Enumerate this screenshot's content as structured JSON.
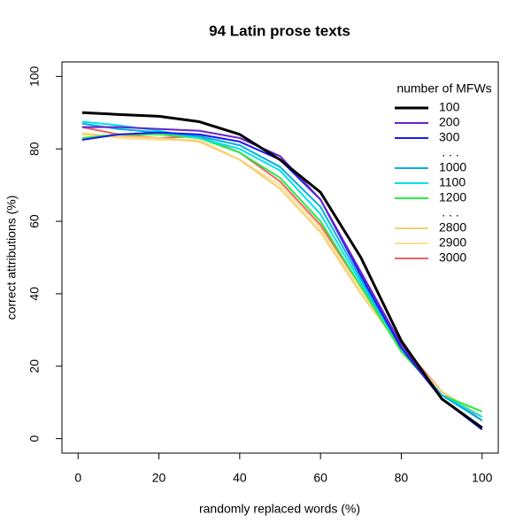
{
  "chart_data": {
    "type": "line",
    "title": "94 Latin prose texts",
    "xlabel": "randomly replaced words (%)",
    "ylabel": "correct attributions (%)",
    "x": [
      1,
      10,
      20,
      30,
      40,
      50,
      60,
      70,
      80,
      90,
      100
    ],
    "xlim": [
      -4,
      104
    ],
    "ylim": [
      -4,
      104
    ],
    "xticks": [
      0,
      20,
      40,
      60,
      80,
      100
    ],
    "yticks": [
      0,
      20,
      40,
      60,
      80,
      100
    ],
    "grid": false,
    "legend_title": "number of MFWs",
    "legend_gaps": [
      ". . .",
      ". . ."
    ],
    "legend_position": "top-right",
    "series": [
      {
        "name": "100",
        "color": "#000000",
        "values": [
          90,
          89.5,
          89,
          87.5,
          84,
          77,
          68,
          50,
          27,
          11,
          3
        ]
      },
      {
        "name": "200",
        "color": "#6a22cc",
        "values": [
          86,
          86,
          85.5,
          85,
          83,
          78,
          66,
          46,
          26,
          11,
          3
        ]
      },
      {
        "name": "300",
        "color": "#1a1aee",
        "values": [
          82.5,
          84,
          84.5,
          84,
          82,
          77,
          66,
          45,
          25,
          11,
          2.5
        ]
      },
      {
        "name": "1000",
        "color": "#00b0e0",
        "values": [
          87,
          85.5,
          84.5,
          83.5,
          81,
          75,
          64,
          44,
          25,
          12,
          5
        ]
      },
      {
        "name": "1100",
        "color": "#00e0f0",
        "values": [
          87.5,
          86.5,
          85,
          83,
          80,
          74,
          62,
          43,
          25,
          12,
          6
        ]
      },
      {
        "name": "1200",
        "color": "#22ee44",
        "values": [
          83,
          84,
          84,
          83,
          79,
          72,
          60,
          42,
          24,
          12,
          7.5
        ]
      },
      {
        "name": "2800",
        "color": "#f5d070",
        "values": [
          84,
          83.5,
          83,
          82,
          77,
          69,
          57,
          40,
          25,
          13,
          6
        ]
      },
      {
        "name": "2900",
        "color": "#fde090",
        "values": [
          84.5,
          83,
          82.5,
          82.5,
          77,
          70,
          58,
          41,
          25,
          13,
          6
        ]
      },
      {
        "name": "3000",
        "color": "#f06060",
        "values": [
          86,
          84,
          83,
          83.5,
          79,
          71,
          59,
          42,
          26,
          13,
          5
        ]
      }
    ]
  }
}
